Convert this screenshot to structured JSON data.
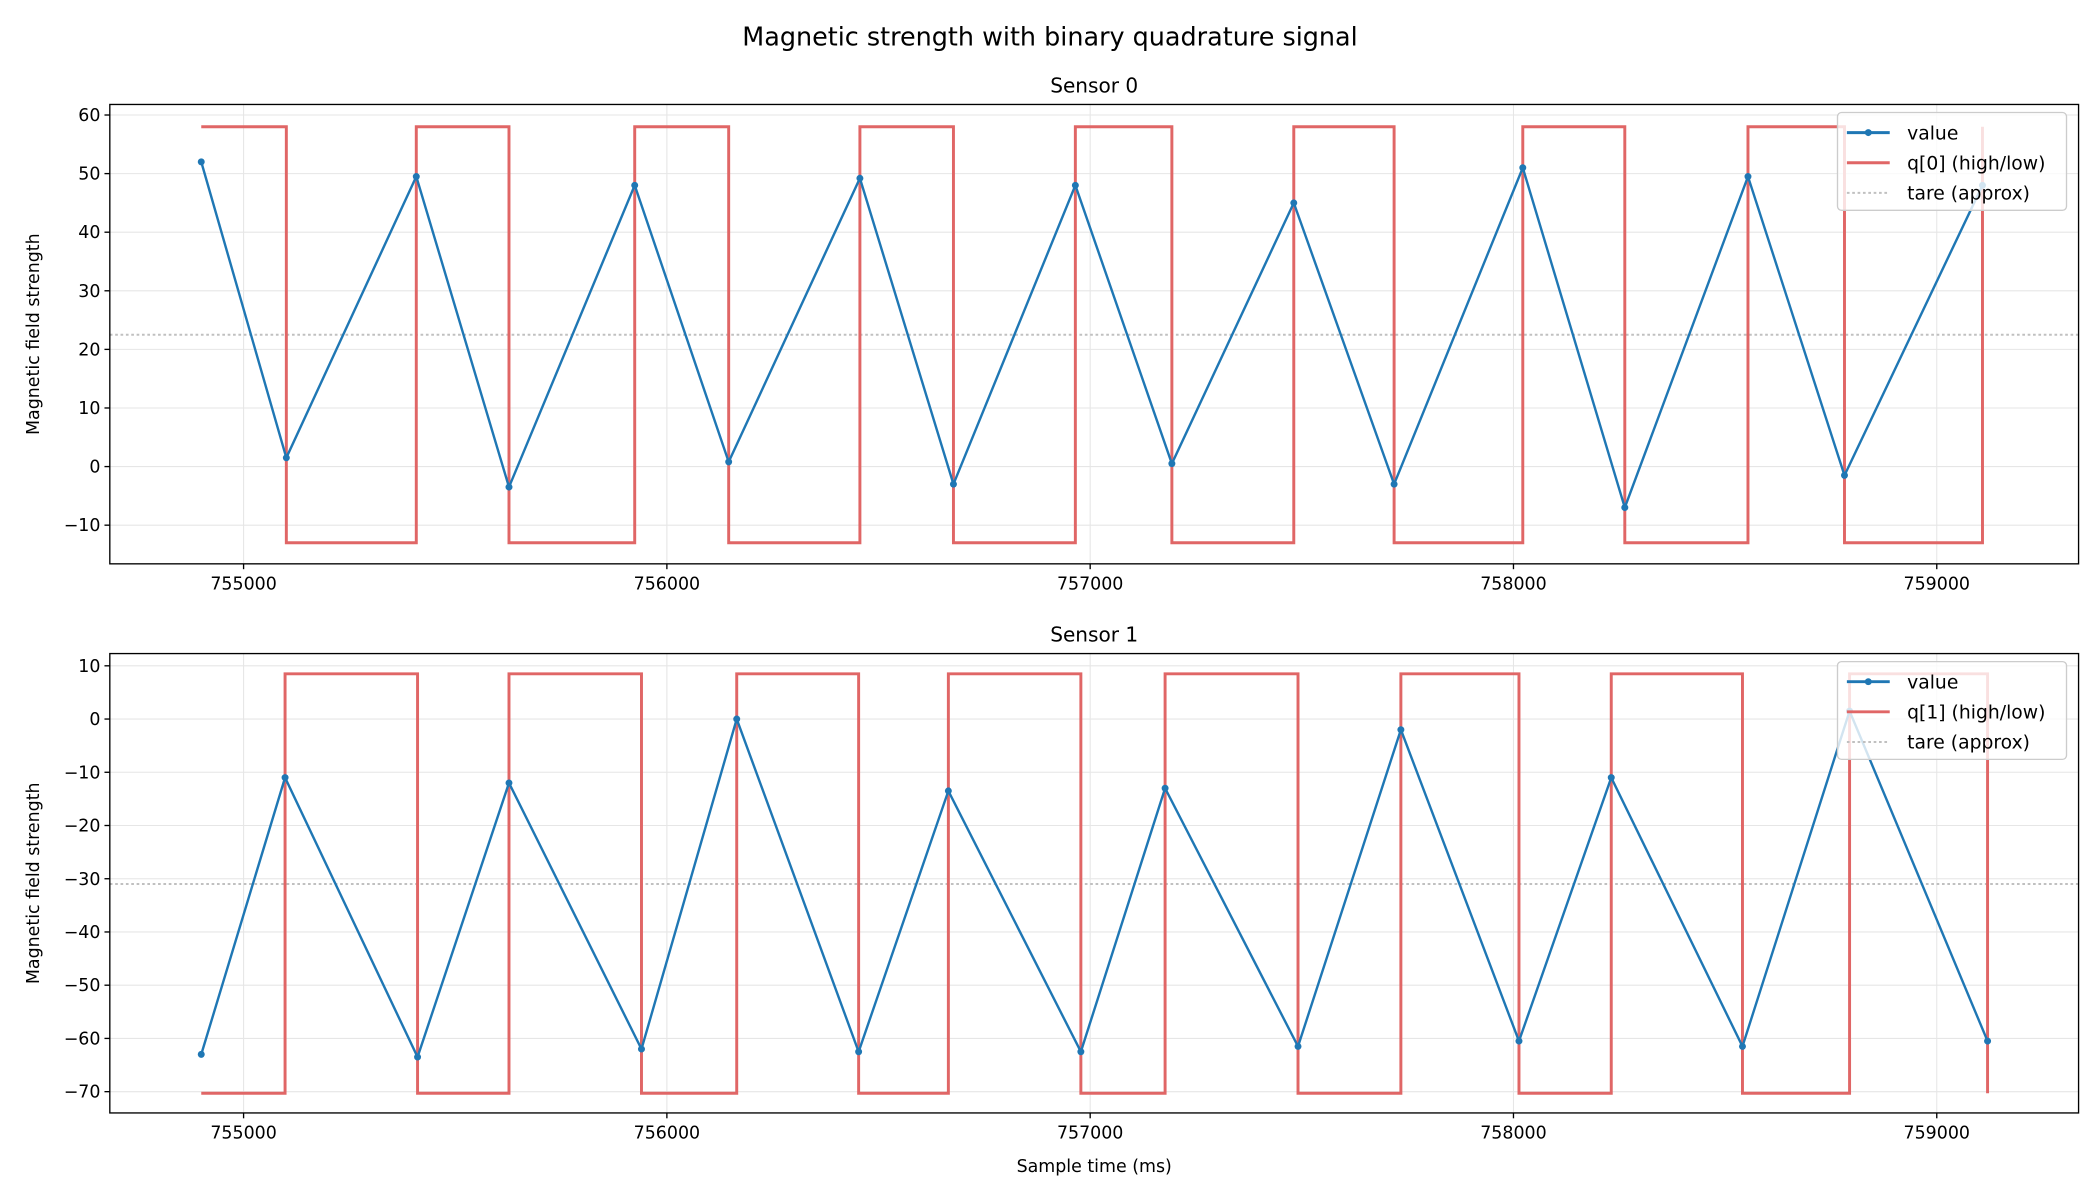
{
  "title": "Magnetic strength with binary quadrature signal",
  "colors": {
    "value": "#1f77b4",
    "q": "#e06666",
    "tare": "#c0c0c0",
    "grid": "#e6e6e6"
  },
  "chart_data": [
    {
      "type": "line",
      "title": "Sensor 0",
      "xlabel": "",
      "ylabel": "Magnetic field strength",
      "xlim": [
        754684,
        759335
      ],
      "ylim": [
        -16.6,
        61.8
      ],
      "xticks": [
        755000,
        756000,
        757000,
        758000,
        759000
      ],
      "yticks": [
        -10,
        0,
        10,
        20,
        30,
        40,
        50,
        60
      ],
      "grid": true,
      "legend_position": "top-right",
      "legend": [
        "value",
        "q[0] (high/low)",
        "tare (approx)"
      ],
      "x": [
        754900,
        755101,
        755408,
        755627,
        755924,
        756146,
        756456,
        756677,
        756965,
        757193,
        757481,
        757718,
        758022,
        758263,
        758554,
        758782,
        759108
      ],
      "value": [
        52,
        1.5,
        49.5,
        -3.5,
        48,
        0.8,
        49.2,
        -3,
        48,
        0.5,
        45,
        -3,
        51,
        -7,
        49.5,
        -1.5,
        48
      ],
      "q_high": 58,
      "q_low": -13,
      "q_state": [
        1,
        0,
        1,
        0,
        1,
        0,
        1,
        0,
        1,
        0,
        1,
        0,
        1,
        0,
        1,
        0,
        1
      ],
      "tare": 22.5
    },
    {
      "type": "line",
      "title": "Sensor 1",
      "xlabel": "Sample time (ms)",
      "ylabel": "Magnetic field strength",
      "xlim": [
        754684,
        759335
      ],
      "ylim": [
        -74.0,
        12.3
      ],
      "xticks": [
        755000,
        756000,
        757000,
        758000,
        759000
      ],
      "yticks": [
        -70,
        -60,
        -50,
        -40,
        -30,
        -20,
        -10,
        0,
        10
      ],
      "grid": true,
      "legend_position": "top-right",
      "legend": [
        "value",
        "q[1] (high/low)",
        "tare (approx)"
      ],
      "x": [
        754900,
        755098,
        755411,
        755627,
        755940,
        756165,
        756453,
        756665,
        756978,
        757177,
        757491,
        757734,
        758013,
        758231,
        758541,
        758794,
        759120
      ],
      "value": [
        -63,
        -11,
        -63.5,
        -12,
        -62,
        0,
        -62.5,
        -13.5,
        -62.5,
        -13,
        -61.5,
        -2,
        -60.5,
        -11,
        -61.5,
        1.5,
        -60.5
      ],
      "q_high": 8.5,
      "q_low": -70.3,
      "q_state": [
        0,
        1,
        0,
        1,
        0,
        1,
        0,
        1,
        0,
        1,
        0,
        1,
        0,
        1,
        0,
        1,
        0
      ],
      "tare": -31
    }
  ]
}
